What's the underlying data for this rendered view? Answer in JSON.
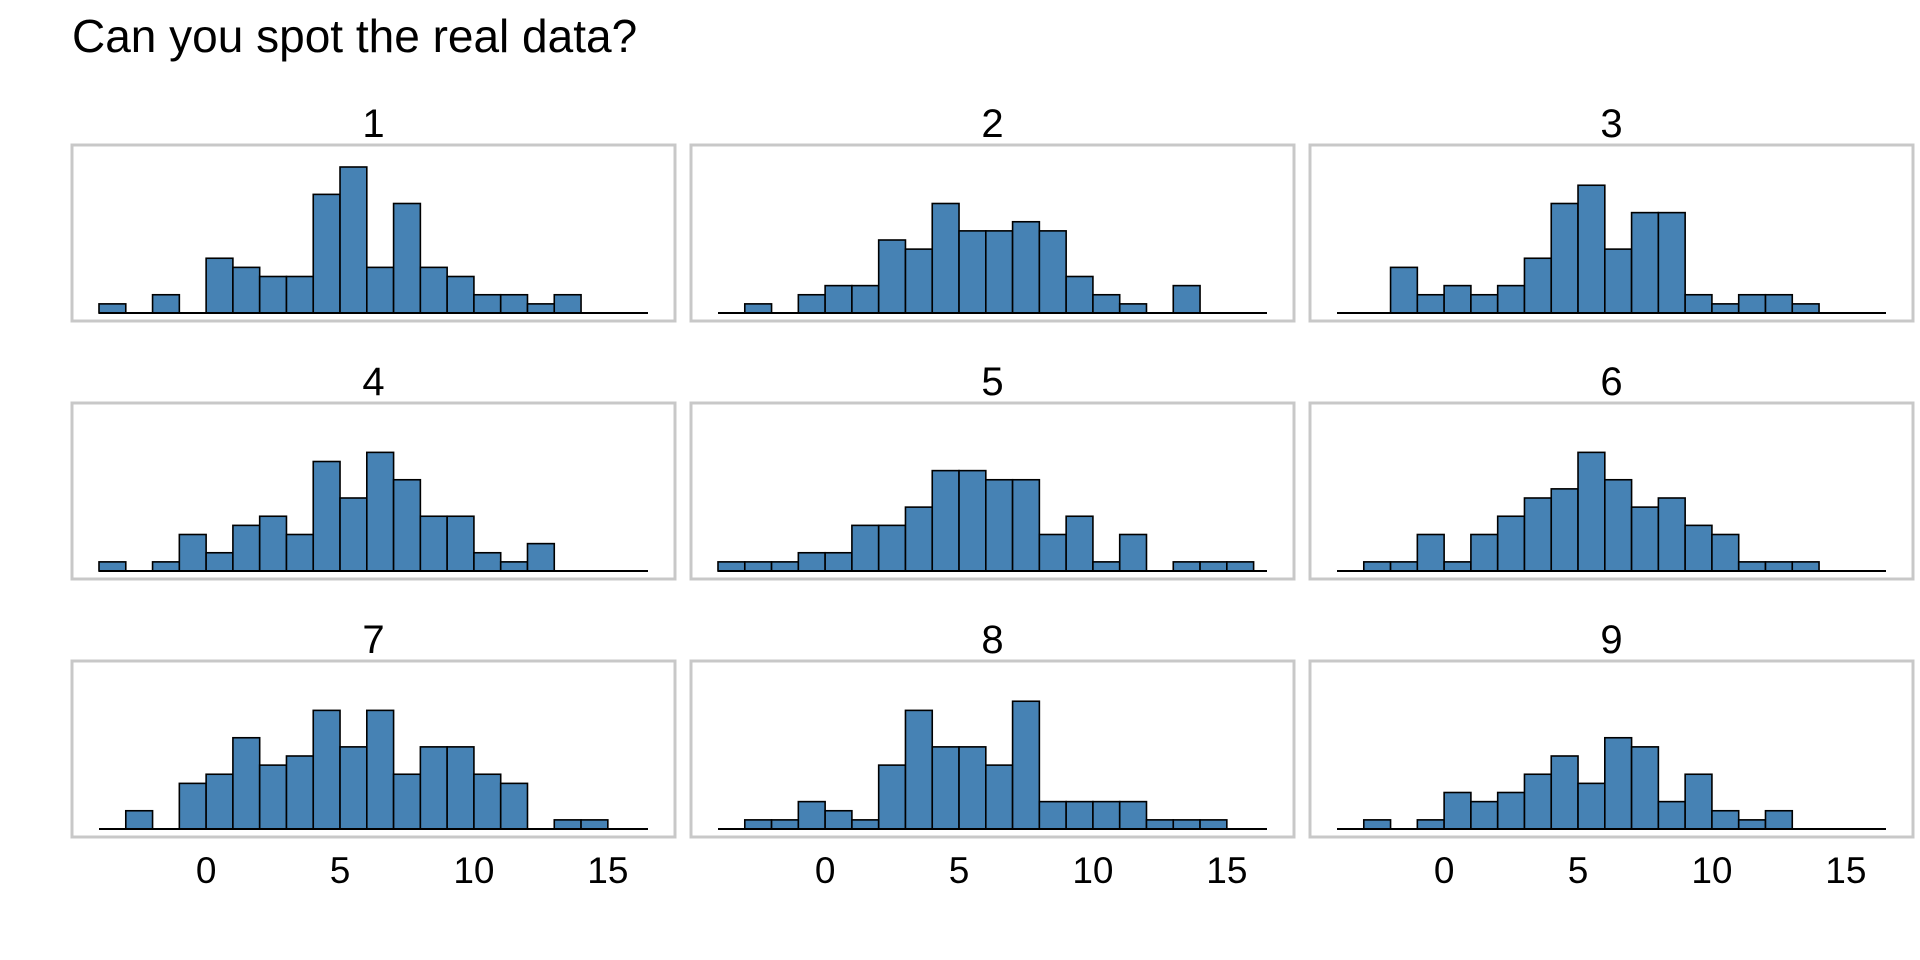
{
  "chart_data": {
    "type": "bar",
    "title": "Can you spot the real data?",
    "bar_color": "#4682B4",
    "bar_outline": "#000000",
    "frame_color": "#C8C8C8",
    "bin_width": 1,
    "bin_start": -4,
    "xlim": [
      -4,
      16.5
    ],
    "x_ticks": [
      0,
      5,
      10,
      15
    ],
    "x_tick_labels": [
      "0",
      "5",
      "10",
      "15"
    ],
    "panels": [
      {
        "label": "1",
        "counts": [
          1,
          0,
          2,
          0,
          6,
          5,
          4,
          4,
          13,
          16,
          5,
          12,
          5,
          4,
          2,
          2,
          1,
          2,
          0,
          0
        ]
      },
      {
        "label": "2",
        "counts": [
          0,
          1,
          0,
          2,
          3,
          3,
          8,
          7,
          12,
          9,
          9,
          10,
          9,
          4,
          2,
          1,
          0,
          3,
          0,
          0
        ]
      },
      {
        "label": "3",
        "counts": [
          0,
          0,
          5,
          2,
          3,
          2,
          3,
          6,
          12,
          14,
          7,
          11,
          11,
          2,
          1,
          2,
          2,
          1,
          0,
          0
        ]
      },
      {
        "label": "4",
        "counts": [
          1,
          0,
          1,
          4,
          2,
          5,
          6,
          4,
          12,
          8,
          13,
          10,
          6,
          6,
          2,
          1,
          3,
          0,
          0,
          0
        ]
      },
      {
        "label": "5",
        "counts": [
          1,
          1,
          1,
          2,
          2,
          5,
          5,
          7,
          11,
          11,
          10,
          10,
          4,
          6,
          1,
          4,
          0,
          1,
          1,
          1
        ]
      },
      {
        "label": "6",
        "counts": [
          0,
          1,
          1,
          4,
          1,
          4,
          6,
          8,
          9,
          13,
          10,
          7,
          8,
          5,
          4,
          1,
          1,
          1,
          0,
          0
        ]
      },
      {
        "label": "7",
        "counts": [
          0,
          2,
          0,
          5,
          6,
          10,
          7,
          8,
          13,
          9,
          13,
          6,
          9,
          9,
          6,
          5,
          0,
          1,
          1,
          0
        ]
      },
      {
        "label": "8",
        "counts": [
          0,
          1,
          1,
          3,
          2,
          1,
          7,
          13,
          9,
          9,
          7,
          14,
          3,
          3,
          3,
          3,
          1,
          1,
          1,
          0
        ]
      },
      {
        "label": "9",
        "counts": [
          0,
          1,
          0,
          1,
          4,
          3,
          4,
          6,
          8,
          5,
          10,
          9,
          3,
          6,
          2,
          1,
          2,
          0,
          0,
          0
        ]
      }
    ]
  }
}
